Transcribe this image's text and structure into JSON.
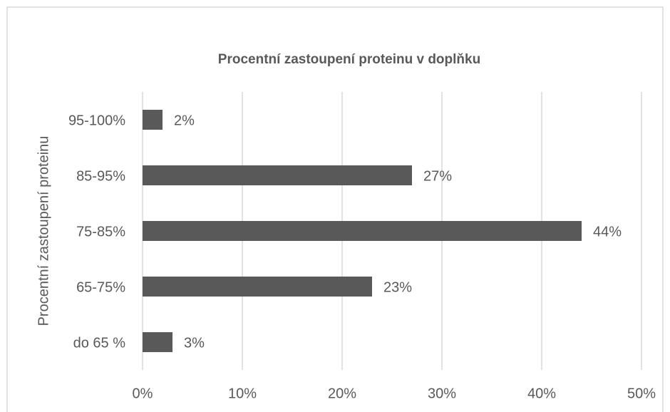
{
  "chart_data": {
    "type": "hbar",
    "title": "Procentní zastoupení proteinu v doplňku",
    "y_label": "Procentní zastoupení proteinu",
    "categories": [
      "95-100%",
      "85-95%",
      "75-85%",
      "65-75%",
      "do 65 %"
    ],
    "values": [
      2,
      27,
      44,
      23,
      3
    ],
    "value_labels": [
      "2%",
      "27%",
      "44%",
      "23%",
      "3%"
    ],
    "color": "#595959",
    "xlim": [
      0,
      50
    ],
    "xticks": [
      {
        "value": 0,
        "label": "0%"
      },
      {
        "value": 10,
        "label": "10%"
      },
      {
        "value": 20,
        "label": "20%"
      },
      {
        "value": 30,
        "label": "30%"
      },
      {
        "value": 40,
        "label": "40%"
      },
      {
        "value": 50,
        "label": "50%"
      }
    ],
    "grid": true
  }
}
